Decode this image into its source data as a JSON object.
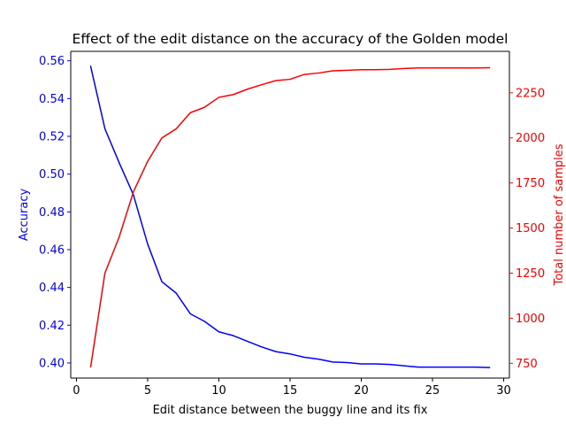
{
  "chart_data": {
    "type": "line",
    "title": "Effect of the edit distance on the accuracy of the Golden model",
    "xlabel": "Edit distance between the buggy line and its fix",
    "ylabel_left": "Accuracy",
    "ylabel_right": "Total number of samples",
    "xlim": [
      -0.4,
      30.4
    ],
    "ylim_left": [
      0.392,
      0.565
    ],
    "ylim_right": [
      668,
      2480
    ],
    "x_ticks": [
      0,
      5,
      10,
      15,
      20,
      25,
      30
    ],
    "y_left_ticks": [
      0.4,
      0.42,
      0.44,
      0.46,
      0.48,
      0.5,
      0.52,
      0.54,
      0.56
    ],
    "y_right_ticks": [
      750,
      1000,
      1250,
      1500,
      1750,
      2000,
      2250
    ],
    "grid": false,
    "series": [
      {
        "name": "Accuracy",
        "axis": "left",
        "color": "#0000ff",
        "x": [
          1,
          2,
          3,
          4,
          5,
          6,
          7,
          8,
          9,
          10,
          11,
          12,
          13,
          14,
          15,
          16,
          17,
          18,
          19,
          20,
          21,
          22,
          23,
          24,
          25,
          26,
          27,
          28,
          29
        ],
        "values": [
          0.557,
          0.524,
          0.506,
          0.489,
          0.463,
          0.443,
          0.437,
          0.426,
          0.422,
          0.4165,
          0.4145,
          0.4115,
          0.4085,
          0.406,
          0.4048,
          0.403,
          0.402,
          0.4005,
          0.4002,
          0.3995,
          0.3995,
          0.3992,
          0.3985,
          0.3978,
          0.3978,
          0.3978,
          0.3978,
          0.3978,
          0.3976
        ]
      },
      {
        "name": "Total number of samples",
        "axis": "right",
        "color": "#ff0000",
        "x": [
          1,
          2,
          3,
          4,
          5,
          6,
          7,
          8,
          9,
          10,
          11,
          12,
          13,
          14,
          15,
          16,
          17,
          18,
          19,
          20,
          21,
          22,
          23,
          24,
          25,
          26,
          27,
          28,
          29
        ],
        "values": [
          730,
          1250,
          1450,
          1700,
          1870,
          2000,
          2050,
          2140,
          2170,
          2225,
          2240,
          2270,
          2295,
          2318,
          2325,
          2352,
          2360,
          2372,
          2375,
          2378,
          2378,
          2380,
          2385,
          2388,
          2388,
          2388,
          2388,
          2388,
          2389
        ]
      }
    ]
  }
}
